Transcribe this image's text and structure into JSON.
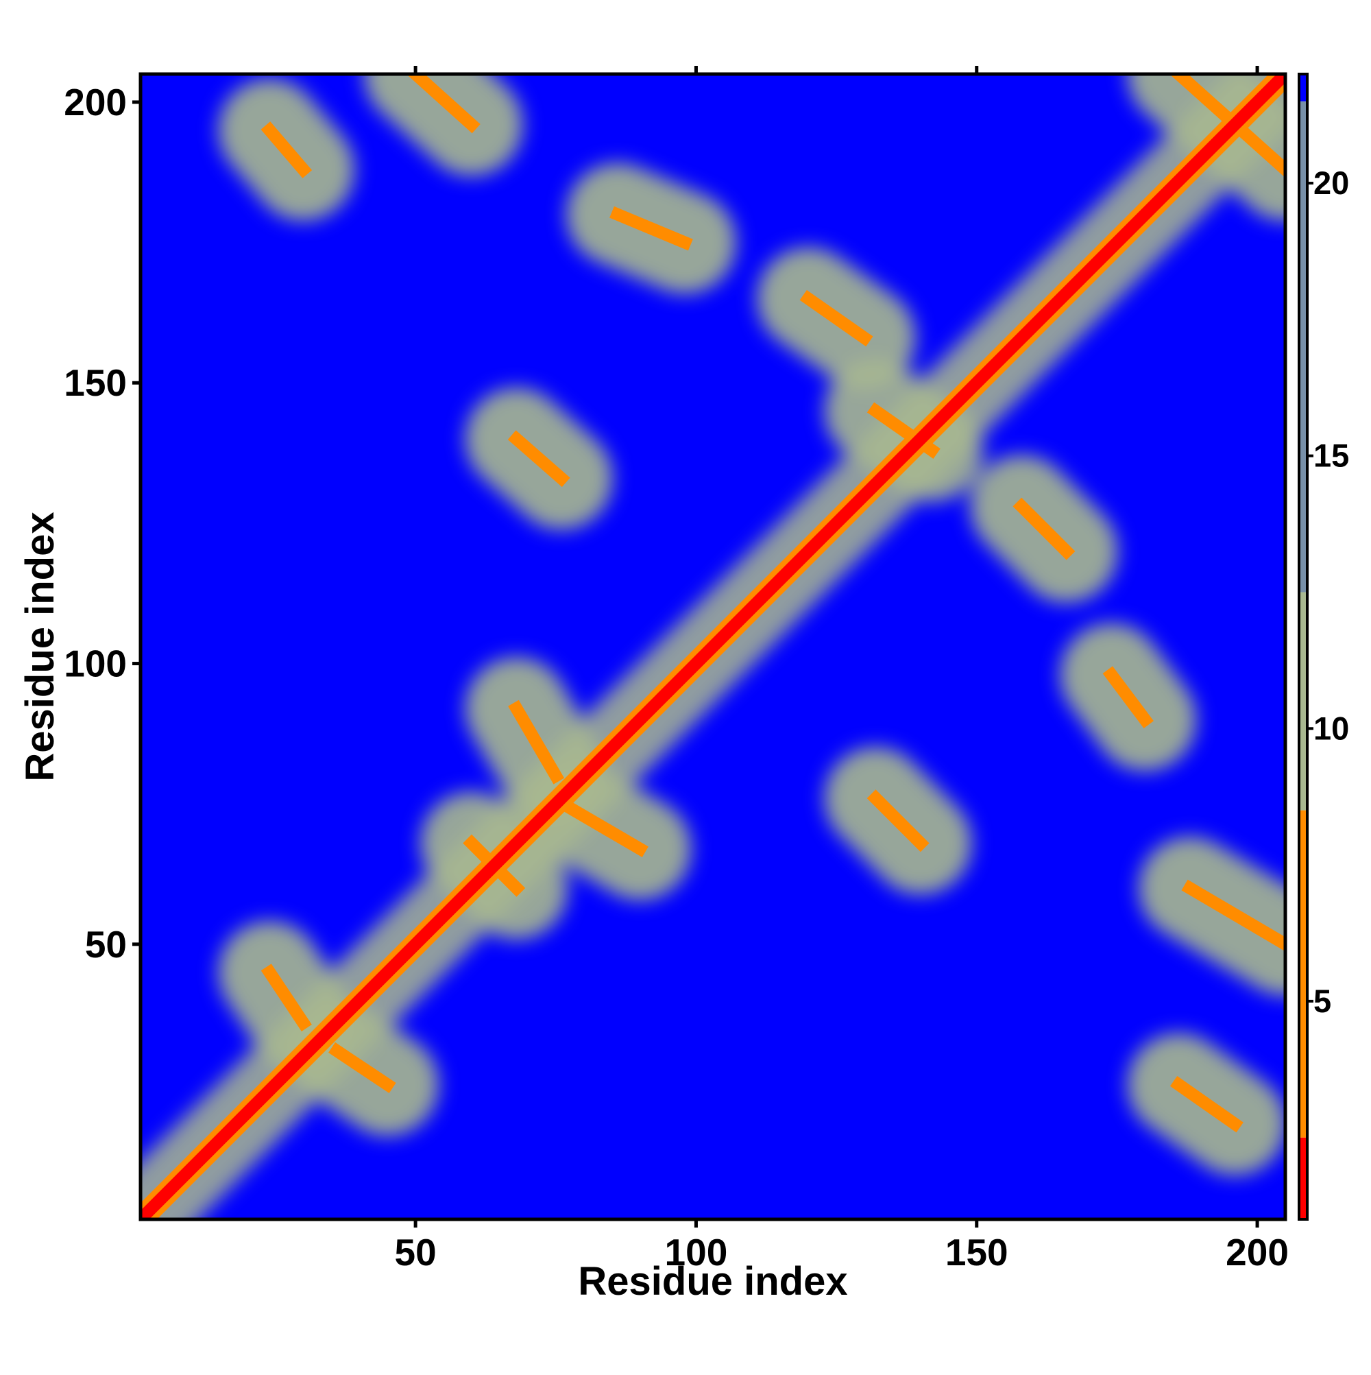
{
  "chart_data": {
    "type": "heatmap",
    "title": "",
    "xlabel": "Residue index",
    "ylabel": "Residue index",
    "xlim": [
      1,
      205
    ],
    "ylim": [
      1,
      205
    ],
    "x_ticks": [
      "50",
      "100",
      "150",
      "200"
    ],
    "y_ticks": [
      "50",
      "100",
      "150",
      "200"
    ],
    "colorbar": {
      "range": [
        1,
        22
      ],
      "ticks": [
        "5",
        "10",
        "15",
        "20"
      ],
      "colors": {
        "contact": "#ff0000",
        "close": "#ff8c00",
        "mid": "#a8b890",
        "far": "#7890a8",
        "background": "#0000ff"
      }
    },
    "grid": false,
    "note_lines": [],
    "off_diagonal_contacts": [
      {
        "x_start": 24,
        "y_start": 45,
        "x_end": 30,
        "y_end": 36,
        "value": 6
      },
      {
        "x_start": 36,
        "y_start": 31,
        "x_end": 45,
        "y_end": 25,
        "value": 6
      },
      {
        "x_start": 68,
        "y_start": 92,
        "x_end": 75,
        "y_end": 80,
        "value": 6
      },
      {
        "x_start": 78,
        "y_start": 74,
        "x_end": 90,
        "y_end": 67,
        "value": 6
      },
      {
        "x_start": 60,
        "y_start": 68,
        "x_end": 68,
        "y_end": 60,
        "value": 7
      },
      {
        "x_start": 68,
        "y_start": 140,
        "x_end": 76,
        "y_end": 133,
        "value": 6
      },
      {
        "x_start": 86,
        "y_start": 180,
        "x_end": 98,
        "y_end": 175,
        "value": 6
      },
      {
        "x_start": 120,
        "y_start": 165,
        "x_end": 130,
        "y_end": 158,
        "value": 6
      },
      {
        "x_start": 132,
        "y_start": 145,
        "x_end": 142,
        "y_end": 138,
        "value": 6
      },
      {
        "x_start": 158,
        "y_start": 128,
        "x_end": 166,
        "y_end": 120,
        "value": 6
      },
      {
        "x_start": 174,
        "y_start": 98,
        "x_end": 180,
        "y_end": 90,
        "value": 6
      },
      {
        "x_start": 132,
        "y_start": 76,
        "x_end": 140,
        "y_end": 68,
        "value": 6
      },
      {
        "x_start": 24,
        "y_start": 195,
        "x_end": 30,
        "y_end": 188,
        "value": 6
      },
      {
        "x_start": 50,
        "y_start": 205,
        "x_end": 60,
        "y_end": 196,
        "value": 6
      },
      {
        "x_start": 186,
        "y_start": 25,
        "x_end": 196,
        "y_end": 18,
        "value": 6
      },
      {
        "x_start": 188,
        "y_start": 60,
        "x_end": 205,
        "y_end": 50,
        "value": 6
      },
      {
        "x_start": 186,
        "y_start": 205,
        "x_end": 205,
        "y_end": 188,
        "value": 6
      }
    ]
  }
}
